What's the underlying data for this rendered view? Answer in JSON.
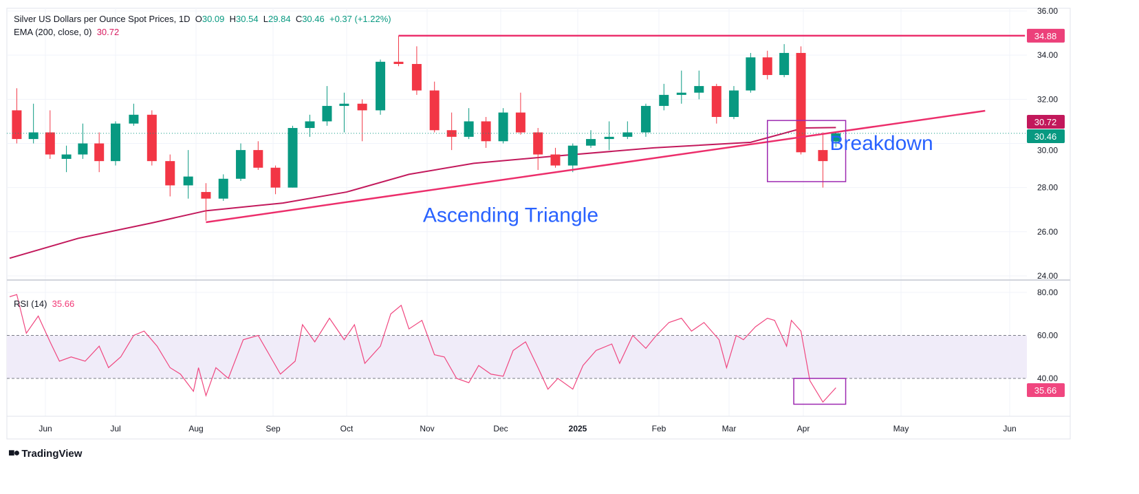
{
  "header": {
    "symbol": "Silver US Dollars per Ounce Spot Prices, 1D",
    "o_label": "O",
    "o": "30.09",
    "h_label": "H",
    "h": "30.54",
    "l_label": "L",
    "l": "29.84",
    "c_label": "C",
    "c": "30.46",
    "change": "+0.37 (+1.22%)",
    "ema_label": "EMA (200, close, 0)",
    "ema_value": "30.72",
    "rsi_label": "RSI (14)",
    "rsi_value": "35.66"
  },
  "footer": {
    "brand": "TradingView"
  },
  "colors": {
    "up": "#089981",
    "down": "#f23645",
    "ema": "#c2185b",
    "trend": "#ec2e6b",
    "annotation_text": "#2962ff",
    "box": "#9c27b0",
    "rsi": "#f0467f",
    "rsi_band": "#f0ecf9"
  },
  "chart_data": [
    {
      "type": "candlestick",
      "title": "Silver US Dollars per Ounce Spot Prices, 1D",
      "ylim": [
        24,
        36
      ],
      "y_ticks": [
        "36.00",
        "34.00",
        "32.00",
        "30.00",
        "28.00",
        "26.00",
        "24.00"
      ],
      "x_ticks": [
        {
          "date": "2024-06-01",
          "label": "Jun"
        },
        {
          "date": "2024-07-01",
          "label": "Jul"
        },
        {
          "date": "2024-08-01",
          "label": "Aug"
        },
        {
          "date": "2024-09-01",
          "label": "Sep"
        },
        {
          "date": "2024-10-01",
          "label": "Oct"
        },
        {
          "date": "2024-11-01",
          "label": "Nov"
        },
        {
          "date": "2024-12-01",
          "label": "Dec"
        },
        {
          "date": "2025-01-01",
          "label": "2025"
        },
        {
          "date": "2025-02-01",
          "label": "Feb"
        },
        {
          "date": "2025-03-01",
          "label": "Mar"
        },
        {
          "date": "2025-04-01",
          "label": "Apr"
        },
        {
          "date": "2025-05-01",
          "label": "May"
        },
        {
          "date": "2025-06-01",
          "label": "Jun"
        }
      ],
      "candles": [
        [
          "2024-05-20",
          31.5,
          32.5,
          30.0,
          30.2
        ],
        [
          "2024-05-27",
          30.2,
          31.8,
          30.0,
          30.5
        ],
        [
          "2024-06-03",
          30.5,
          31.5,
          29.3,
          29.5
        ],
        [
          "2024-06-10",
          29.3,
          29.9,
          28.7,
          29.5
        ],
        [
          "2024-06-17",
          29.5,
          30.9,
          29.3,
          30.0
        ],
        [
          "2024-06-24",
          30.0,
          30.5,
          28.7,
          29.2
        ],
        [
          "2024-07-01",
          29.2,
          31.0,
          29.0,
          30.9
        ],
        [
          "2024-07-08",
          30.9,
          31.8,
          30.8,
          31.3
        ],
        [
          "2024-07-15",
          31.3,
          31.5,
          29.0,
          29.2
        ],
        [
          "2024-07-22",
          29.2,
          29.5,
          27.6,
          28.1
        ],
        [
          "2024-07-29",
          28.1,
          29.7,
          27.5,
          28.5
        ],
        [
          "2024-08-05",
          27.8,
          28.2,
          26.5,
          27.5
        ],
        [
          "2024-08-12",
          27.5,
          28.6,
          27.4,
          28.4
        ],
        [
          "2024-08-19",
          28.4,
          30.0,
          28.3,
          29.7
        ],
        [
          "2024-08-26",
          29.7,
          30.1,
          28.8,
          28.9
        ],
        [
          "2024-09-02",
          28.9,
          29.0,
          27.7,
          28.0
        ],
        [
          "2024-09-09",
          28.0,
          30.8,
          28.0,
          30.7
        ],
        [
          "2024-09-16",
          30.7,
          31.3,
          30.3,
          31.0
        ],
        [
          "2024-09-23",
          31.0,
          32.6,
          30.8,
          31.7
        ],
        [
          "2024-09-30",
          31.7,
          32.3,
          30.5,
          31.8
        ],
        [
          "2024-10-07",
          31.8,
          32.0,
          30.1,
          31.5
        ],
        [
          "2024-10-14",
          31.5,
          33.8,
          31.3,
          33.7
        ],
        [
          "2024-10-21",
          33.7,
          34.88,
          33.5,
          33.6
        ],
        [
          "2024-10-28",
          33.6,
          34.4,
          32.2,
          32.4
        ],
        [
          "2024-11-04",
          32.4,
          32.8,
          30.5,
          30.6
        ],
        [
          "2024-11-11",
          30.6,
          31.4,
          29.7,
          30.3
        ],
        [
          "2024-11-18",
          30.3,
          31.6,
          30.2,
          31.0
        ],
        [
          "2024-11-25",
          31.0,
          31.2,
          29.8,
          30.1
        ],
        [
          "2024-12-02",
          30.1,
          31.6,
          30.0,
          31.4
        ],
        [
          "2024-12-09",
          31.4,
          32.3,
          30.4,
          30.5
        ],
        [
          "2024-12-16",
          30.5,
          30.7,
          28.8,
          29.5
        ],
        [
          "2024-12-23",
          29.5,
          29.8,
          28.9,
          29.0
        ],
        [
          "2024-12-30",
          29.0,
          30.0,
          28.7,
          29.9
        ],
        [
          "2025-01-06",
          29.9,
          30.6,
          29.8,
          30.2
        ],
        [
          "2025-01-13",
          30.2,
          31.0,
          29.7,
          30.3
        ],
        [
          "2025-01-20",
          30.3,
          31.0,
          30.2,
          30.5
        ],
        [
          "2025-01-27",
          30.5,
          31.8,
          30.3,
          31.7
        ],
        [
          "2025-02-03",
          31.7,
          32.7,
          31.5,
          32.2
        ],
        [
          "2025-02-10",
          32.2,
          33.3,
          31.8,
          32.3
        ],
        [
          "2025-02-17",
          32.3,
          33.3,
          32.0,
          32.6
        ],
        [
          "2025-02-24",
          32.6,
          32.7,
          30.9,
          31.2
        ],
        [
          "2025-03-03",
          31.2,
          32.6,
          31.1,
          32.4
        ],
        [
          "2025-03-10",
          32.4,
          34.1,
          32.3,
          33.9
        ],
        [
          "2025-03-17",
          33.9,
          34.2,
          32.9,
          33.1
        ],
        [
          "2025-03-24",
          33.1,
          34.5,
          33.0,
          34.1
        ],
        [
          "2025-03-31",
          34.1,
          34.4,
          29.5,
          29.6
        ],
        [
          "2025-04-07",
          29.7,
          30.5,
          28.0,
          29.2
        ],
        [
          "2025-04-11",
          30.09,
          30.54,
          29.84,
          30.46
        ]
      ],
      "ema_200": [
        [
          "2024-05-17",
          24.8
        ],
        [
          "2024-06-15",
          25.7
        ],
        [
          "2024-07-15",
          26.4
        ],
        [
          "2024-08-05",
          26.95
        ],
        [
          "2024-09-05",
          27.3
        ],
        [
          "2024-10-01",
          27.8
        ],
        [
          "2024-10-25",
          28.6
        ],
        [
          "2024-11-20",
          29.1
        ],
        [
          "2024-12-20",
          29.4
        ],
        [
          "2025-01-30",
          29.8
        ],
        [
          "2025-03-10",
          30.05
        ],
        [
          "2025-04-01",
          30.7
        ],
        [
          "2025-04-11",
          30.72
        ]
      ],
      "resistance_line": {
        "value": 34.88,
        "from": "2024-10-21",
        "to": "2025-06-08"
      },
      "support_line": [
        [
          "2024-08-05",
          26.43
        ],
        [
          "2025-05-25",
          31.48
        ]
      ],
      "highlight_box": {
        "from": "2025-03-17",
        "to": "2025-04-14",
        "low": 28.27,
        "high": 31.04
      },
      "price_labels": [
        {
          "value": 34.88,
          "text": "34.88",
          "color": "#ec407a"
        },
        {
          "value": 30.72,
          "text": "30.72",
          "color": "#c2185b"
        },
        {
          "value": 30.46,
          "text": "30.46",
          "color": "#089981"
        }
      ],
      "annotations": [
        {
          "text": "Ascending Triangle",
          "date": "2024-12-05",
          "value": 26.45
        },
        {
          "text": "Breakdown",
          "date": "2025-04-25",
          "value": 29.7
        }
      ]
    },
    {
      "type": "line",
      "title": "RSI (14)",
      "ylim": [
        20,
        85
      ],
      "band": [
        40,
        60
      ],
      "y_ticks": [
        "80.00",
        "60.00",
        "40.00"
      ],
      "current_label": "35.66",
      "values": [
        [
          "2024-05-17",
          78
        ],
        [
          "2024-05-20",
          79
        ],
        [
          "2024-05-24",
          61
        ],
        [
          "2024-05-29",
          69
        ],
        [
          "2024-06-03",
          57
        ],
        [
          "2024-06-07",
          48
        ],
        [
          "2024-06-12",
          50
        ],
        [
          "2024-06-18",
          48
        ],
        [
          "2024-06-24",
          55
        ],
        [
          "2024-06-28",
          45
        ],
        [
          "2024-07-03",
          50
        ],
        [
          "2024-07-08",
          60
        ],
        [
          "2024-07-12",
          62
        ],
        [
          "2024-07-17",
          55
        ],
        [
          "2024-07-22",
          45
        ],
        [
          "2024-07-26",
          42
        ],
        [
          "2024-07-31",
          34
        ],
        [
          "2024-08-02",
          45
        ],
        [
          "2024-08-05",
          32
        ],
        [
          "2024-08-09",
          45
        ],
        [
          "2024-08-14",
          40
        ],
        [
          "2024-08-20",
          58
        ],
        [
          "2024-08-26",
          60
        ],
        [
          "2024-08-30",
          52
        ],
        [
          "2024-09-04",
          42
        ],
        [
          "2024-09-10",
          48
        ],
        [
          "2024-09-13",
          65
        ],
        [
          "2024-09-18",
          57
        ],
        [
          "2024-09-24",
          68
        ],
        [
          "2024-09-30",
          58
        ],
        [
          "2024-10-04",
          65
        ],
        [
          "2024-10-08",
          47
        ],
        [
          "2024-10-14",
          55
        ],
        [
          "2024-10-18",
          70
        ],
        [
          "2024-10-22",
          74
        ],
        [
          "2024-10-25",
          63
        ],
        [
          "2024-10-30",
          67
        ],
        [
          "2024-11-04",
          51
        ],
        [
          "2024-11-08",
          50
        ],
        [
          "2024-11-13",
          40
        ],
        [
          "2024-11-18",
          38
        ],
        [
          "2024-11-22",
          46
        ],
        [
          "2024-11-27",
          42
        ],
        [
          "2024-12-02",
          41
        ],
        [
          "2024-12-06",
          53
        ],
        [
          "2024-12-11",
          57
        ],
        [
          "2024-12-16",
          45
        ],
        [
          "2024-12-20",
          35
        ],
        [
          "2024-12-24",
          40
        ],
        [
          "2024-12-30",
          35
        ],
        [
          "2025-01-03",
          46
        ],
        [
          "2025-01-08",
          53
        ],
        [
          "2025-01-14",
          56
        ],
        [
          "2025-01-17",
          47
        ],
        [
          "2025-01-22",
          60
        ],
        [
          "2025-01-27",
          54
        ],
        [
          "2025-01-31",
          60
        ],
        [
          "2025-02-05",
          66
        ],
        [
          "2025-02-10",
          68
        ],
        [
          "2025-02-14",
          62
        ],
        [
          "2025-02-19",
          66
        ],
        [
          "2025-02-25",
          58
        ],
        [
          "2025-02-28",
          45
        ],
        [
          "2025-03-04",
          60
        ],
        [
          "2025-03-07",
          58
        ],
        [
          "2025-03-12",
          64
        ],
        [
          "2025-03-17",
          68
        ],
        [
          "2025-03-20",
          67
        ],
        [
          "2025-03-25",
          55
        ],
        [
          "2025-03-27",
          67
        ],
        [
          "2025-03-31",
          62
        ],
        [
          "2025-04-03",
          39
        ],
        [
          "2025-04-07",
          29
        ],
        [
          "2025-04-10",
          34
        ],
        [
          "2025-04-11",
          35.66
        ]
      ],
      "highlight_box": {
        "from": "2025-03-28",
        "to": "2025-04-14",
        "low": 28,
        "high": 40
      }
    }
  ]
}
